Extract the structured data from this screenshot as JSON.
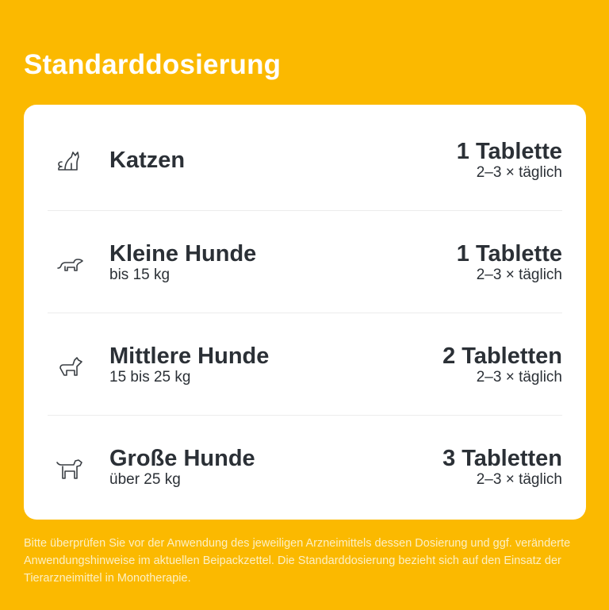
{
  "title": "Standarddosierung",
  "colors": {
    "background": "#FBB900",
    "card": "#FFFFFF",
    "text": "#2B3036"
  },
  "rows": [
    {
      "icon": "cat-icon",
      "name": "Katzen",
      "sub": "",
      "dose": "1 Tablette",
      "freq": "2–3 × täglich"
    },
    {
      "icon": "small-dog-icon",
      "name": "Kleine Hunde",
      "sub": "bis 15 kg",
      "dose": "1 Tablette",
      "freq": "2–3 × täglich"
    },
    {
      "icon": "medium-dog-icon",
      "name": "Mittlere Hunde",
      "sub": "15 bis 25 kg",
      "dose": "2 Tabletten",
      "freq": "2–3 × täglich"
    },
    {
      "icon": "large-dog-icon",
      "name": "Große Hunde",
      "sub": "über 25 kg",
      "dose": "3 Tabletten",
      "freq": "2–3 × täglich"
    }
  ],
  "note": "Bitte überprüfen Sie vor der Anwendung des jeweiligen Arzneimittels dessen Dosierung und ggf. veränderte Anwendungshinweise im aktuellen Beipackzettel. Die Standarddosierung bezieht sich auf den Einsatz der Tierarzneimittel in Monotherapie."
}
